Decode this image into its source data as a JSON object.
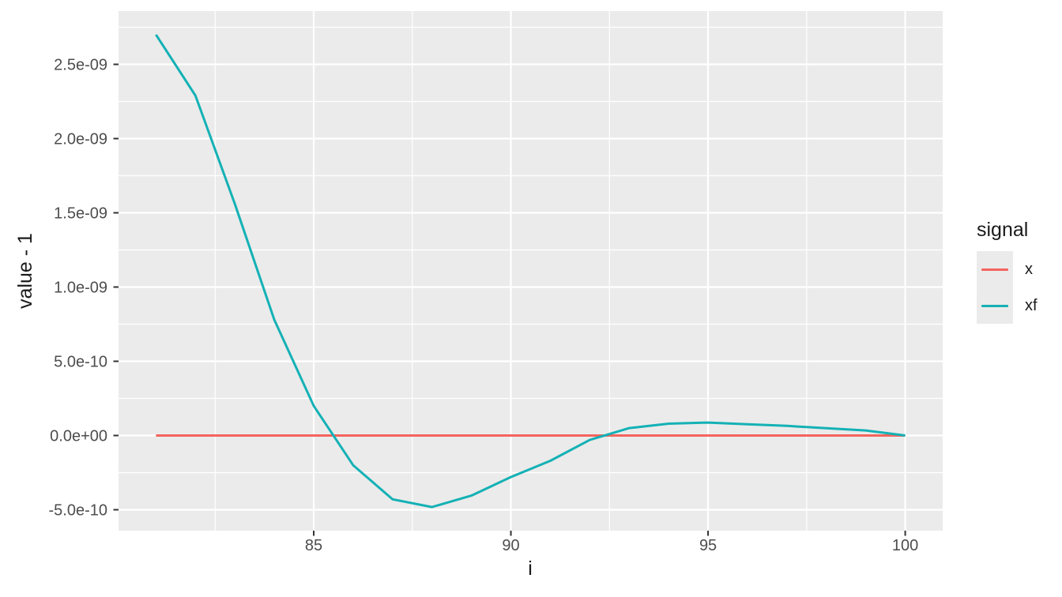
{
  "chart_data": {
    "type": "line",
    "title": "",
    "xlabel": "i",
    "ylabel": "value - 1",
    "legend_title": "signal",
    "legend_position": "right",
    "grid": true,
    "panel_bg": "#EBEBEB",
    "grid_color": "#FFFFFF",
    "tick_color": "#333333",
    "tick_label_color": "#4D4D4D",
    "xlim": [
      80.05,
      100.95
    ],
    "ylim": [
      -6.41e-10,
      2.859e-09
    ],
    "x_major": [
      85,
      90,
      95,
      100
    ],
    "x_tick_labels": [
      "85",
      "90",
      "95",
      "100"
    ],
    "x_minor": [
      82.5,
      87.5,
      92.5,
      97.5
    ],
    "y_major": [
      2.5e-09,
      2e-09,
      1.5e-09,
      1e-09,
      5e-10,
      0.0,
      -5e-10
    ],
    "y_tick_labels": [
      "2.5e-09",
      "2.0e-09",
      "1.5e-09",
      "1.0e-09",
      "5.0e-10",
      "0.0e+00",
      "-5.0e-10"
    ],
    "y_minor": [
      2.75e-09,
      2.25e-09,
      1.75e-09,
      1.25e-09,
      7.5e-10,
      2.5e-10,
      -2.5e-10
    ],
    "x": [
      81,
      82,
      83,
      84,
      85,
      86,
      87,
      88,
      89,
      90,
      91,
      92,
      93,
      94,
      95,
      96,
      97,
      98,
      99,
      100
    ],
    "series": [
      {
        "name": "x",
        "color": "#F4645D",
        "values": [
          0,
          0,
          0,
          0,
          0,
          0,
          0,
          0,
          0,
          0,
          0,
          0,
          0,
          0,
          0,
          0,
          0,
          0,
          0,
          0
        ]
      },
      {
        "name": "xf",
        "color": "#14B1B5",
        "values": [
          2.7e-09,
          2.29e-09,
          1.56e-09,
          7.8e-10,
          2e-10,
          -2e-10,
          -4.3e-10,
          -4.82e-10,
          -4.05e-10,
          -2.8e-10,
          -1.7e-10,
          -3e-11,
          5e-11,
          8e-11,
          8.7e-11,
          7.6e-11,
          6.5e-11,
          4.9e-11,
          3.4e-11,
          0
        ]
      }
    ]
  }
}
